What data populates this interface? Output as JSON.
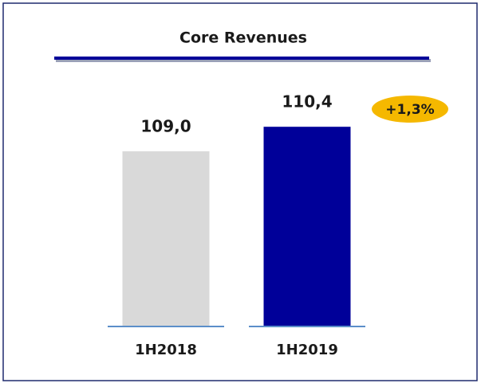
{
  "chart_data": {
    "type": "bar",
    "title": "Core Revenues",
    "categories": [
      "1H2018",
      "1H2019"
    ],
    "values": [
      109.0,
      110.4
    ],
    "value_labels": [
      "109,0",
      "110,4"
    ],
    "colors": [
      "#d9d9d9",
      "#000099"
    ],
    "annotation": "+1,3%",
    "annotation_color": "#f5b800",
    "ylim": [
      99,
      111
    ]
  }
}
